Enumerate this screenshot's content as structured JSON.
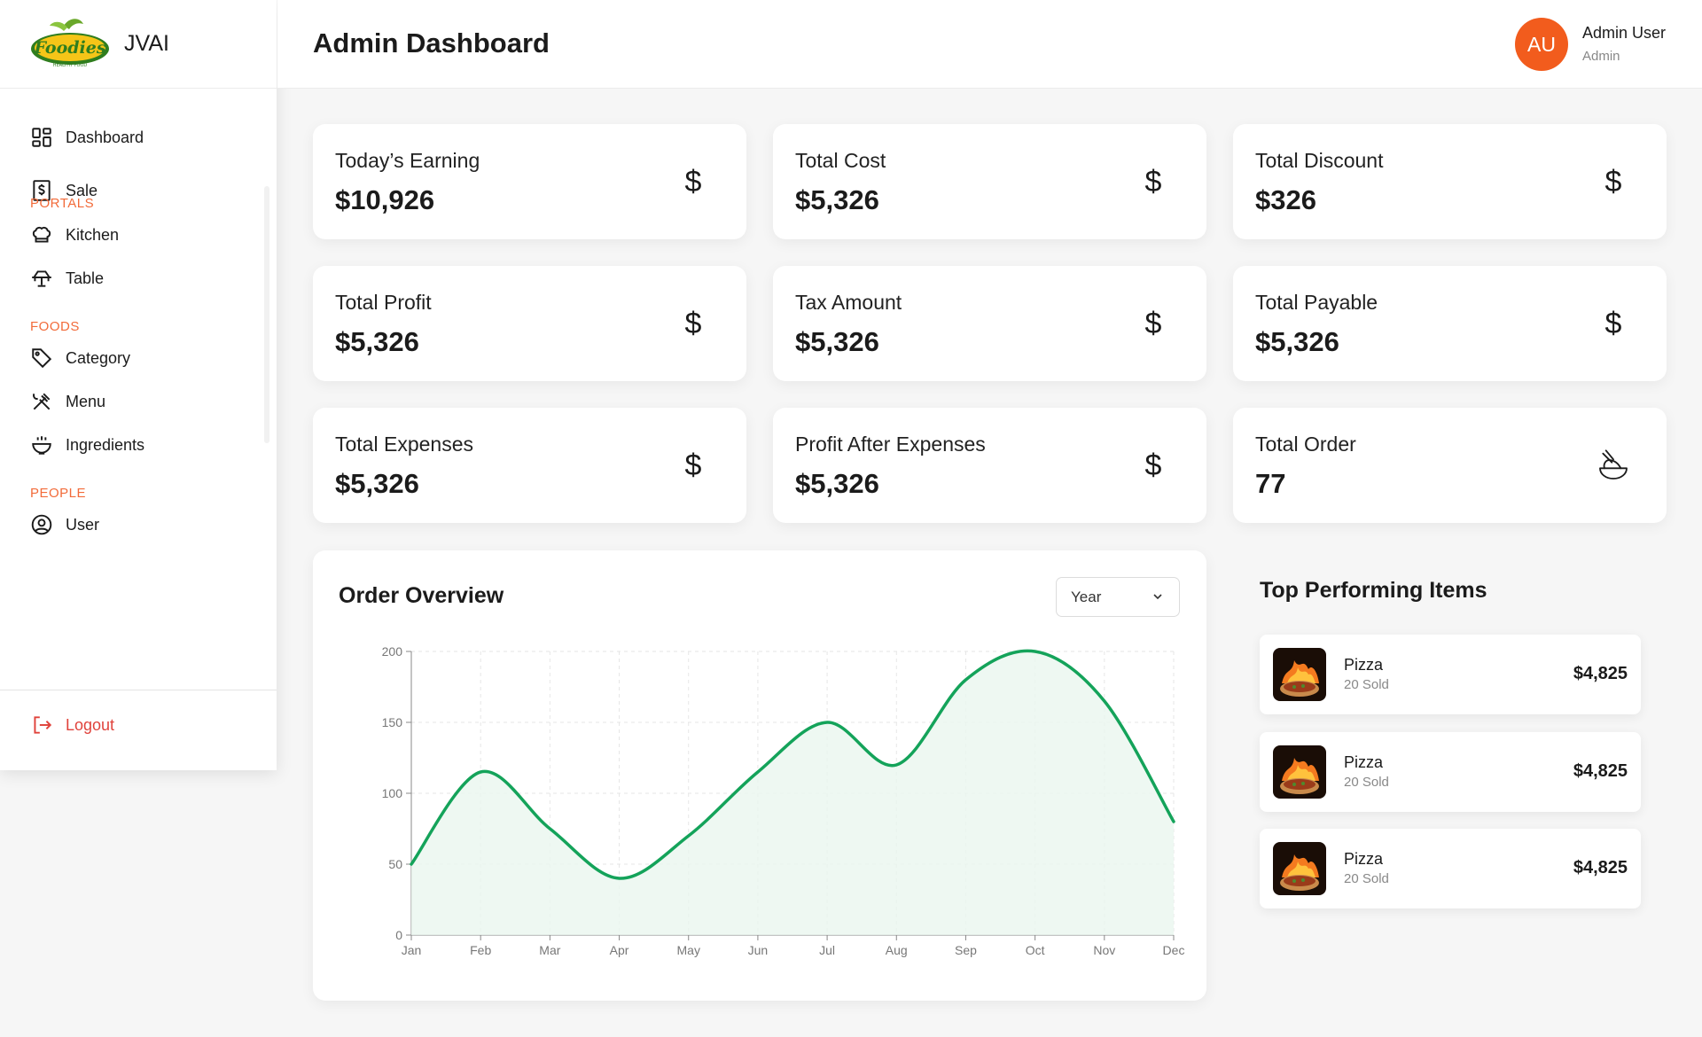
{
  "brand": {
    "name": "JVAI",
    "logo_text": "Foodies",
    "logo_sub": "HEALTHY FOOD"
  },
  "sidebar": {
    "items": [
      {
        "label": "Dashboard",
        "icon": "dashboard-grid-icon"
      },
      {
        "label": "Sale",
        "icon": "receipt-dollar-icon"
      }
    ],
    "portals_title": "PORTALS",
    "portals": [
      {
        "label": "Kitchen",
        "icon": "chef-hat-icon"
      },
      {
        "label": "Table",
        "icon": "table-icon"
      }
    ],
    "foods_title": "FOODS",
    "foods": [
      {
        "label": "Category",
        "icon": "tag-icon"
      },
      {
        "label": "Menu",
        "icon": "utensils-icon"
      },
      {
        "label": "Ingredients",
        "icon": "bowl-icon"
      }
    ],
    "people_title": "PEOPLE",
    "people": [
      {
        "label": "User",
        "icon": "user-circle-icon"
      }
    ],
    "logout_label": "Logout"
  },
  "header": {
    "title": "Admin Dashboard",
    "avatar_initials": "AU",
    "user_name": "Admin User",
    "user_role": "Admin"
  },
  "stats": [
    {
      "label": "Today’s Earning",
      "value": "$10,926",
      "icon": "dollar-icon"
    },
    {
      "label": "Total Cost",
      "value": "$5,326",
      "icon": "dollar-icon"
    },
    {
      "label": "Total Discount",
      "value": "$326",
      "icon": "dollar-icon"
    },
    {
      "label": "Total Profit",
      "value": "$5,326",
      "icon": "dollar-icon"
    },
    {
      "label": "Tax Amount",
      "value": "$5,326",
      "icon": "dollar-icon"
    },
    {
      "label": "Total Payable",
      "value": "$5,326",
      "icon": "dollar-icon"
    },
    {
      "label": "Total Expenses",
      "value": "$5,326",
      "icon": "dollar-icon"
    },
    {
      "label": "Profit After Expenses",
      "value": "$5,326",
      "icon": "dollar-icon"
    },
    {
      "label": "Total Order",
      "value": "77",
      "icon": "food-bowl-icon"
    }
  ],
  "dollar_glyph": "$",
  "order_overview": {
    "title": "Order Overview",
    "select_value": "Year"
  },
  "chart_data": {
    "type": "area",
    "categories": [
      "Jan",
      "Feb",
      "Mar",
      "Apr",
      "May",
      "Jun",
      "Jul",
      "Aug",
      "Sep",
      "Oct",
      "Nov",
      "Dec"
    ],
    "values": [
      50,
      115,
      75,
      40,
      70,
      115,
      150,
      120,
      180,
      200,
      165,
      80
    ],
    "ylim": [
      0,
      200
    ],
    "yticks": [
      0,
      50,
      100,
      150,
      200
    ],
    "grid": true,
    "line_color": "#14a35a",
    "fill_color": "#eaf6ef"
  },
  "top_items": {
    "title": "Top Performing Items",
    "items": [
      {
        "name": "Pizza",
        "sold": "20 Sold",
        "price": "$4,825"
      },
      {
        "name": "Pizza",
        "sold": "20 Sold",
        "price": "$4,825"
      },
      {
        "name": "Pizza",
        "sold": "20 Sold",
        "price": "$4,825"
      }
    ]
  }
}
